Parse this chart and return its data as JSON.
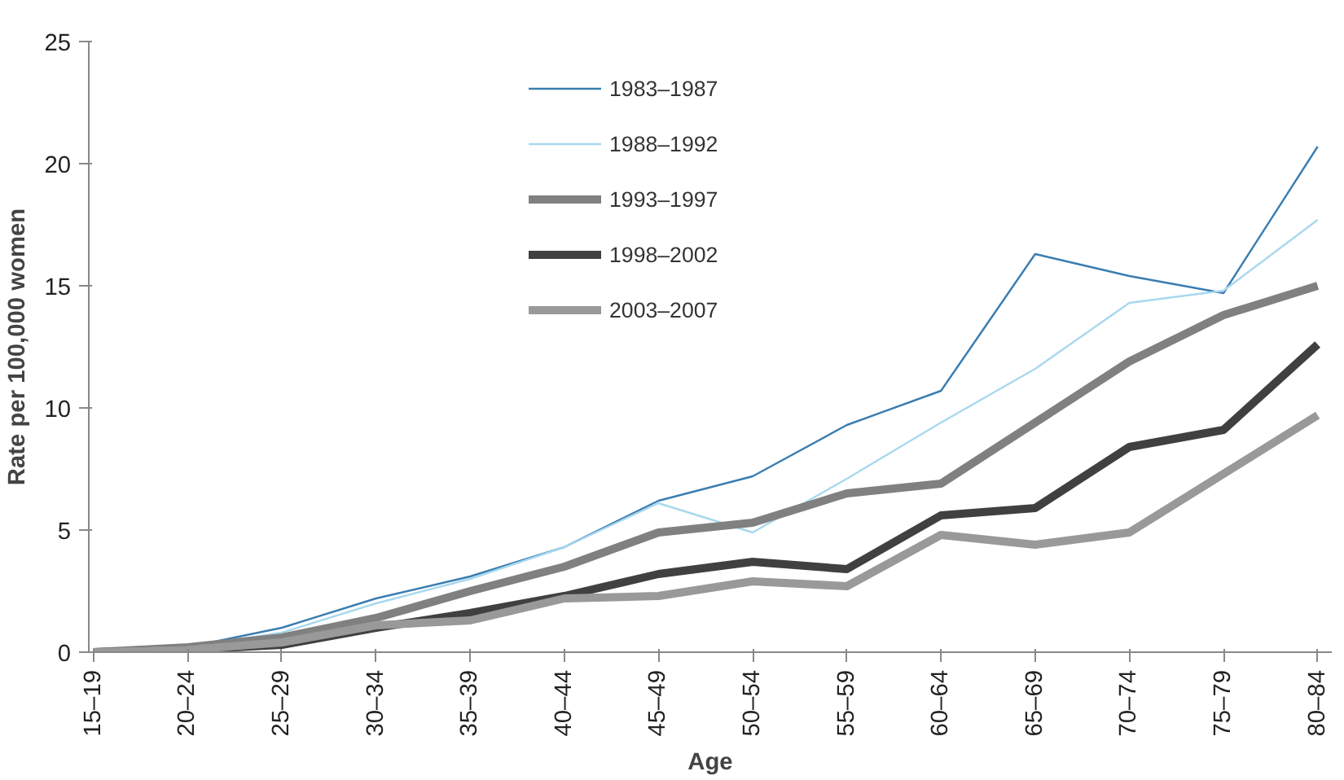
{
  "chart_data": {
    "type": "line",
    "xlabel": "Age",
    "ylabel": "Rate per 100,000 women",
    "categories": [
      "15–19",
      "20–24",
      "25–29",
      "30–34",
      "35–39",
      "40–44",
      "45–49",
      "50–54",
      "55–59",
      "60–64",
      "65–69",
      "70–74",
      "75–79",
      "80–84"
    ],
    "series": [
      {
        "name": "1983–1987",
        "color": "#3a7db0",
        "values": [
          0,
          0.2,
          1.0,
          2.2,
          3.1,
          4.3,
          6.2,
          7.2,
          9.3,
          10.7,
          16.3,
          15.4,
          14.7,
          20.7
        ]
      },
      {
        "name": "1988–1992",
        "color": "#a8d8ee",
        "values": [
          0,
          0.2,
          0.8,
          2.0,
          3.0,
          4.3,
          6.1,
          4.9,
          7.1,
          9.4,
          11.6,
          14.3,
          14.8,
          17.7
        ]
      },
      {
        "name": "1993–1997",
        "color": "#808080",
        "values": [
          0,
          0.2,
          0.6,
          1.4,
          2.5,
          3.5,
          4.9,
          5.3,
          6.5,
          6.9,
          9.4,
          11.9,
          13.8,
          15.0
        ]
      },
      {
        "name": "1998–2002",
        "color": "#404040",
        "values": [
          0,
          0.1,
          0.3,
          1.0,
          1.6,
          2.3,
          3.2,
          3.7,
          3.4,
          5.6,
          5.9,
          8.4,
          9.1,
          12.6
        ]
      },
      {
        "name": "2003–2007",
        "color": "#999999",
        "values": [
          0,
          0.1,
          0.4,
          1.1,
          1.3,
          2.2,
          2.3,
          2.9,
          2.7,
          4.8,
          4.4,
          4.9,
          7.3,
          9.7
        ]
      }
    ],
    "ylim": [
      0,
      25
    ],
    "yticks": [
      0,
      5,
      10,
      15,
      20,
      25
    ],
    "grid": false,
    "legend": "top",
    "marker": "none",
    "line_style": "solid"
  }
}
